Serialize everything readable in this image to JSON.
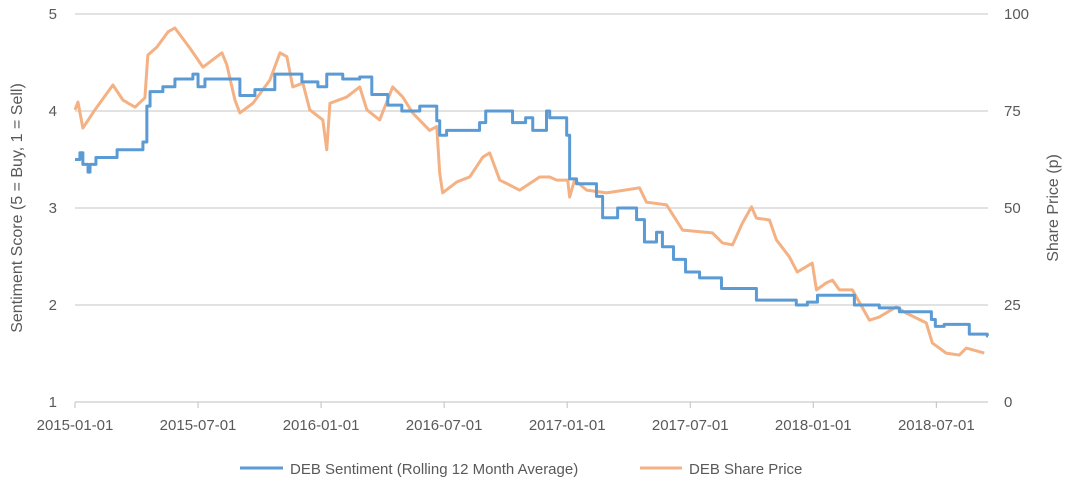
{
  "chart_data": {
    "type": "line",
    "x_units": "decimal year",
    "xlim": [
      2015.0,
      2018.71
    ],
    "ylabel_left": "Sentiment Score (5 = Buy, 1 = Sell)",
    "ylabel_right": "Share Price (p)",
    "ylim_left": [
      1,
      5
    ],
    "ylim_right": [
      0,
      100
    ],
    "left_ticks": [
      "1",
      "2",
      "3",
      "4",
      "5"
    ],
    "right_ticks": [
      "0",
      "25",
      "50",
      "75",
      "100"
    ],
    "x_ticks": [
      {
        "label": "2015-01-01",
        "x": 2015.0
      },
      {
        "label": "2015-07-01",
        "x": 2015.5
      },
      {
        "label": "2016-01-01",
        "x": 2016.0
      },
      {
        "label": "2016-07-01",
        "x": 2016.5
      },
      {
        "label": "2017-01-01",
        "x": 2017.0
      },
      {
        "label": "2017-07-01",
        "x": 2017.5
      },
      {
        "label": "2018-01-01",
        "x": 2018.0
      },
      {
        "label": "2018-07-01",
        "x": 2018.5
      }
    ],
    "grid": true,
    "legend_position": "bottom",
    "series": [
      {
        "name": "DEB Sentiment (Rolling 12 Month Average)",
        "axis": "left",
        "color": "#5b9bd5",
        "step": true,
        "x": [
          2015.0,
          2015.02,
          2015.032,
          2015.053,
          2015.061,
          2015.085,
          2015.171,
          2015.276,
          2015.292,
          2015.305,
          2015.357,
          2015.406,
          2015.479,
          2015.5,
          2015.528,
          2015.67,
          2015.731,
          2015.812,
          2015.922,
          2015.987,
          2016.023,
          2016.088,
          2016.157,
          2016.206,
          2016.271,
          2016.328,
          2016.401,
          2016.47,
          2016.482,
          2016.51,
          2016.563,
          2016.644,
          2016.669,
          2016.778,
          2016.831,
          2016.86,
          2016.916,
          2016.929,
          2016.998,
          2017.01,
          2017.038,
          2017.119,
          2017.144,
          2017.205,
          2017.282,
          2017.314,
          2017.363,
          2017.387,
          2017.432,
          2017.481,
          2017.538,
          2017.627,
          2017.769,
          2017.931,
          2017.976,
          2018.017,
          2018.118,
          2018.167,
          2018.268,
          2018.35,
          2018.48,
          2018.496,
          2018.532,
          2018.634,
          2018.707
        ],
        "y": [
          3.5,
          3.57,
          3.45,
          3.37,
          3.45,
          3.52,
          3.6,
          3.68,
          4.05,
          4.2,
          4.25,
          4.33,
          4.38,
          4.25,
          4.33,
          4.16,
          4.22,
          4.38,
          4.3,
          4.25,
          4.38,
          4.33,
          4.35,
          4.17,
          4.06,
          4.0,
          4.05,
          3.9,
          3.75,
          3.8,
          3.8,
          3.88,
          4.0,
          3.88,
          3.93,
          3.8,
          4.0,
          3.93,
          3.75,
          3.3,
          3.25,
          3.12,
          2.9,
          3.0,
          2.88,
          2.65,
          2.75,
          2.6,
          2.47,
          2.34,
          2.28,
          2.17,
          2.05,
          2.0,
          2.03,
          2.1,
          2.1,
          2.0,
          1.97,
          1.93,
          1.85,
          1.78,
          1.8,
          1.7,
          1.68
        ]
      },
      {
        "name": "DEB Share Price",
        "axis": "right",
        "color": "#f4b183",
        "step": false,
        "x": [
          2015.0,
          2015.012,
          2015.032,
          2015.081,
          2015.154,
          2015.195,
          2015.244,
          2015.284,
          2015.296,
          2015.333,
          2015.378,
          2015.406,
          2015.467,
          2015.52,
          2015.597,
          2015.617,
          2015.65,
          2015.67,
          2015.723,
          2015.792,
          2015.833,
          2015.861,
          2015.885,
          2015.926,
          2015.954,
          2016.007,
          2016.023,
          2016.036,
          2016.104,
          2016.157,
          2016.186,
          2016.238,
          2016.291,
          2016.332,
          2016.372,
          2016.441,
          2016.47,
          2016.482,
          2016.494,
          2016.551,
          2016.604,
          2016.657,
          2016.685,
          2016.726,
          2016.807,
          2016.888,
          2016.929,
          2016.957,
          2017.002,
          2017.01,
          2017.03,
          2017.079,
          2017.16,
          2017.294,
          2017.322,
          2017.404,
          2017.469,
          2017.59,
          2017.631,
          2017.672,
          2017.712,
          2017.749,
          2017.769,
          2017.822,
          2017.85,
          2017.903,
          2017.935,
          2017.996,
          2018.013,
          2018.053,
          2018.078,
          2018.106,
          2018.159,
          2018.228,
          2018.268,
          2018.337,
          2018.378,
          2018.459,
          2018.484,
          2018.54,
          2018.593,
          2018.622,
          2018.695
        ],
        "y": [
          75.3,
          77.3,
          70.6,
          75.3,
          81.7,
          77.8,
          76,
          78.4,
          89.4,
          91.5,
          95.4,
          96.4,
          91.2,
          86.3,
          90,
          86.9,
          77.8,
          74.5,
          77,
          83,
          90,
          89,
          81.2,
          82.2,
          75.3,
          72.7,
          65,
          77,
          78.6,
          81.2,
          75.3,
          72.7,
          81.2,
          78.6,
          74.5,
          70,
          71,
          59,
          53.9,
          56.7,
          58,
          63.1,
          64.2,
          57.2,
          54.6,
          58,
          58,
          57.2,
          57.2,
          52.8,
          57.2,
          54.6,
          53.9,
          55.2,
          51.5,
          50.8,
          44.3,
          43.6,
          41,
          40.5,
          46.1,
          50.3,
          47.4,
          46.9,
          41.8,
          37.4,
          33.5,
          35.8,
          28.9,
          30.7,
          31.4,
          28.9,
          28.9,
          21.1,
          21.9,
          24.5,
          22.9,
          20.4,
          15.2,
          12.6,
          12.1,
          13.9,
          12.6
        ]
      }
    ]
  }
}
